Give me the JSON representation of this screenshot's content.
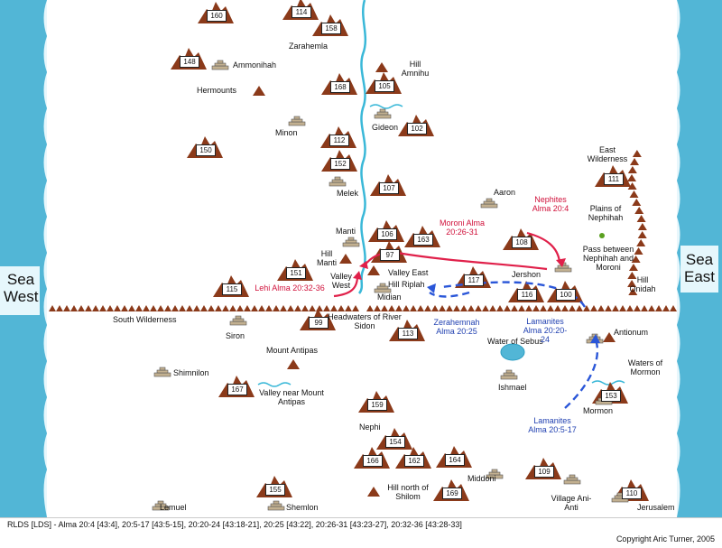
{
  "seas": {
    "west": "Sea West",
    "east": "Sea East"
  },
  "labels": {
    "zarahemla": "Zarahemla",
    "ammonihah": "Ammonihah",
    "hermounts": "Hermounts",
    "hill_amnihu": "Hill Amnihu",
    "minon": "Minon",
    "gideon": "Gideon",
    "melek": "Melek",
    "manti": "Manti",
    "hill_manti": "Hill Manti",
    "valley_west": "Valley West",
    "valley_east": "Valley East",
    "hill_riplah": "Hill Riplah",
    "midian": "Midian",
    "aaron": "Aaron",
    "jershon": "Jershon",
    "east_wilderness": "East Wilderness",
    "plains_nephihah": "Plains of Nephihah",
    "pass_between": "Pass between Nephihah and Moroni",
    "hill_onidah": "Hill Onidah",
    "south_wilderness": "South Wilderness",
    "siron": "Siron",
    "headwaters": "Headwaters of River Sidon",
    "antionum": "Antionum",
    "water_sebus": "Water of Sebus",
    "mount_antipas": "Mount Antipas",
    "shimnilon": "Shimnilon",
    "valley_antipas": "Valley near Mount Antipas",
    "ishmael": "Ishmael",
    "waters_mormon": "Waters of Mormon",
    "mormon": "Mormon",
    "nephi": "Nephi",
    "middoni": "Middoni",
    "hill_shilom": "Hill north of Shilom",
    "lemuel": "Lemuel",
    "shemlon": "Shemlon",
    "village_ani_anti": "Village Ani-Anti",
    "jerusalem": "Jerusalem"
  },
  "annotations": {
    "nephites": "Nephites Alma 20:4",
    "moroni": "Moroni Alma 20:26-31",
    "lehi": "Lehi Alma 20:32-36",
    "zerahemnah": "Zerahemnah Alma 20:25",
    "lamanites_1": "Lamanites Alma 20:20-24",
    "lamanites_2": "Lamanites Alma 20:5-17"
  },
  "hill_numbers": [
    "160",
    "114",
    "158",
    "148",
    "168",
    "105",
    "102",
    "112",
    "150",
    "152",
    "107",
    "111",
    "106",
    "163",
    "108",
    "97",
    "151",
    "115",
    "117",
    "116",
    "100",
    "99",
    "113",
    "167",
    "153",
    "159",
    "154",
    "166",
    "162",
    "164",
    "109",
    "155",
    "169",
    "110"
  ],
  "colors": {
    "sea": "#52b6d6",
    "river": "#3ab8d8",
    "mountain": "#8b3a1a",
    "nephite_route": "#e0204a",
    "lamanite_route": "#2a56d8",
    "building": "#c2b090"
  },
  "footer": {
    "reference": "RLDS [LDS] - Alma 20:4 [43:4], 20:5-17 [43:5-15], 20:20-24 [43:18-21], 20:25 [43:22], 20:26-31 [43:23-27], 20:32-36 [43:28-33]",
    "copyright": "Copyright Aric Turner, 2005"
  }
}
